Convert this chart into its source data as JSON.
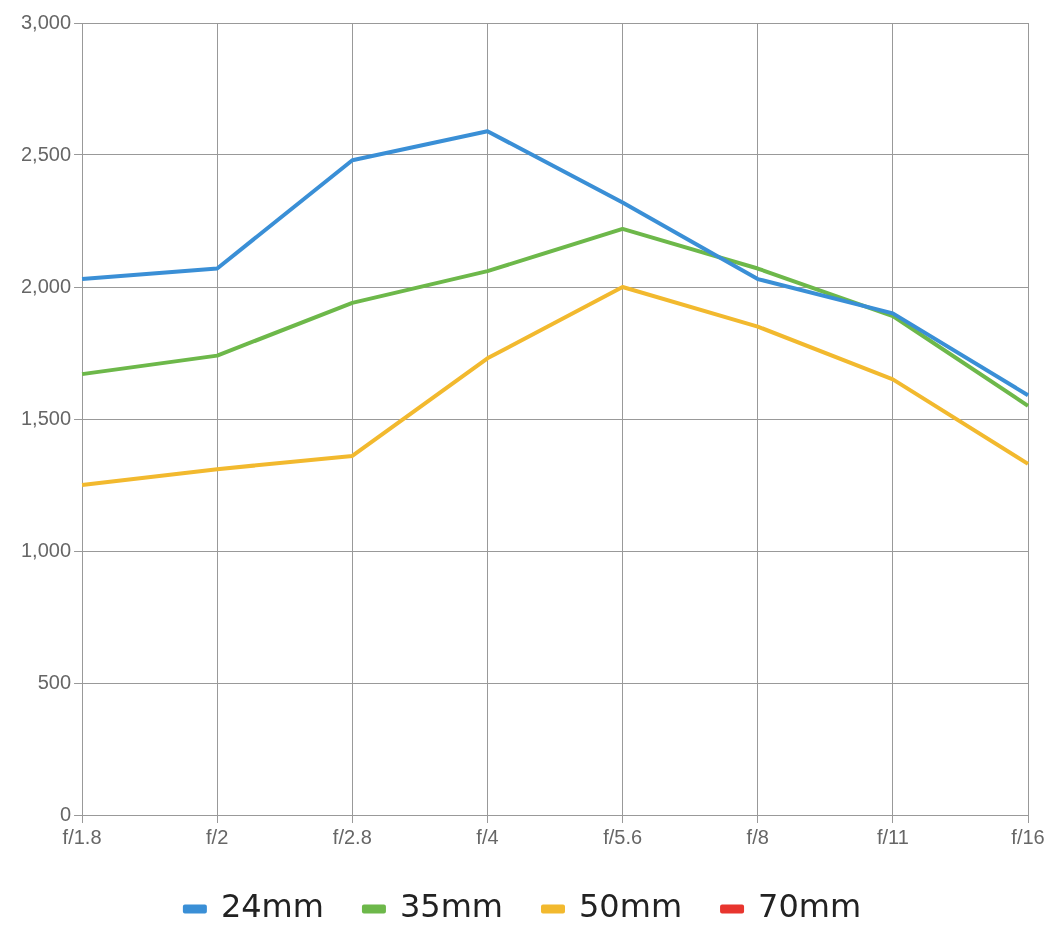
{
  "chart_data": {
    "type": "line",
    "categories": [
      "f/1.8",
      "f/2",
      "f/2.8",
      "f/4",
      "f/5.6",
      "f/8",
      "f/11",
      "f/16"
    ],
    "series": [
      {
        "name": "24mm",
        "color": "#3a8fd6",
        "values": [
          2030,
          2070,
          2480,
          2590,
          2320,
          2030,
          1900,
          1590
        ]
      },
      {
        "name": "35mm",
        "color": "#6db84a",
        "values": [
          1670,
          1740,
          1940,
          2060,
          2220,
          2070,
          1890,
          1550
        ]
      },
      {
        "name": "50mm",
        "color": "#f2b92e",
        "values": [
          1250,
          1310,
          1360,
          1730,
          2000,
          1850,
          1650,
          1330
        ]
      },
      {
        "name": "70mm",
        "color": "#e8352e",
        "values": [
          null,
          null,
          null,
          null,
          null,
          null,
          null,
          null
        ]
      }
    ],
    "ylim": [
      0,
      3000
    ],
    "yticks": [
      0,
      500,
      {
        "value": 1000,
        "label": "1,000"
      },
      {
        "value": 1500,
        "label": "1,500"
      },
      {
        "value": 2000,
        "label": "2,000"
      },
      {
        "value": 2500,
        "label": "2,500"
      },
      {
        "value": 3000,
        "label": "3,000"
      }
    ],
    "grid": true,
    "legend": "bottom",
    "marker": "none",
    "line_style": "solid"
  }
}
